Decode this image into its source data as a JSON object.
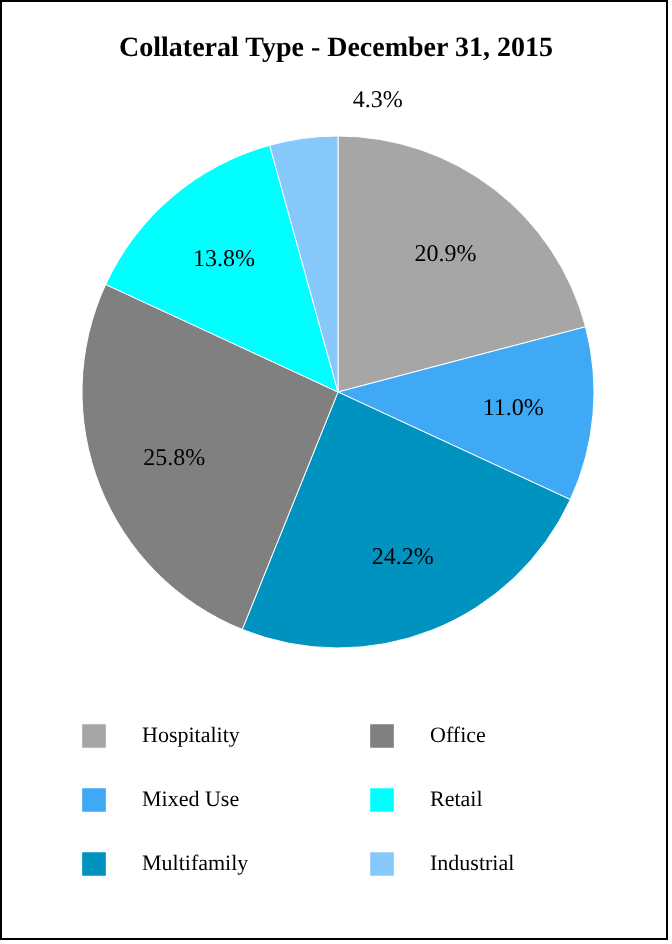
{
  "chart_data": {
    "type": "pie",
    "title": "Collateral Type - December 31, 2015",
    "categories": [
      "Hospitality",
      "Mixed Use",
      "Multifamily",
      "Office",
      "Retail",
      "Industrial"
    ],
    "values": [
      20.9,
      11.0,
      24.2,
      25.8,
      13.8,
      4.3
    ],
    "value_labels": [
      "20.9%",
      "11.0%",
      "24.2%",
      "25.8%",
      "13.8%",
      "4.3%"
    ],
    "colors": [
      "#a6a6a6",
      "#3fa9f5",
      "#0093c0",
      "#808080",
      "#00ffff",
      "#87c8fa"
    ],
    "legend": "bottom"
  }
}
